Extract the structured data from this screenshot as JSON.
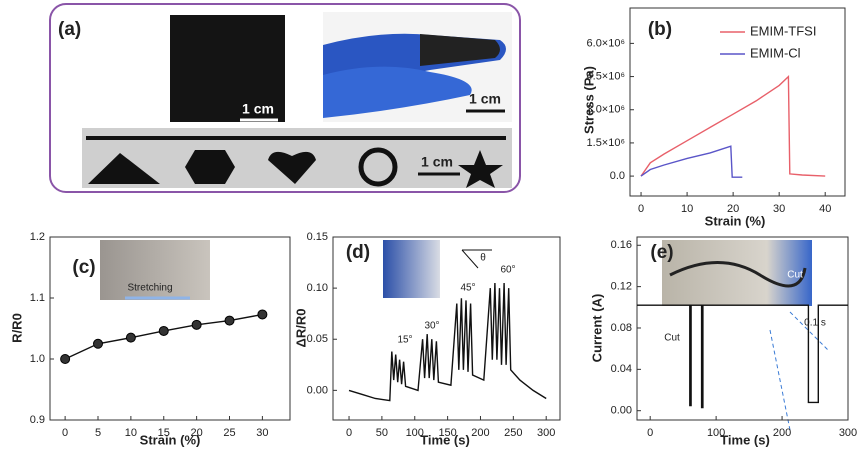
{
  "photo_panel": {
    "panel_label": "(a)",
    "scale_bars": [
      "1 cm",
      "1 cm",
      "1 cm"
    ]
  },
  "chart_data": [
    {
      "type": "line",
      "panel_label": "(b)",
      "xlabel": "Strain (%)",
      "ylabel": "Stress (Pa)",
      "legend": "upper right",
      "xlim": [
        -2.4,
        44.3
      ],
      "xticks": [
        0,
        10,
        20,
        30,
        40
      ],
      "ylim": [
        -900000,
        7600000
      ],
      "yticks": [
        {
          "value": 0,
          "label": "0.0"
        },
        {
          "value": 1500000,
          "label": "1.5×10⁶"
        },
        {
          "value": 3000000,
          "label": "3.0×10⁶"
        },
        {
          "value": 4500000,
          "label": "4.5×10⁶"
        },
        {
          "value": 6000000,
          "label": "6.0×10⁶"
        }
      ],
      "series": [
        {
          "name": "EMIM-TFSI",
          "color": "#e8606a",
          "x": [
            0,
            2,
            5,
            10,
            15,
            20,
            25,
            30,
            32,
            32.3,
            35,
            40
          ],
          "values": [
            0,
            600000,
            1000000,
            1600000,
            2200000,
            2800000,
            3400000,
            4100000,
            4500000,
            100000,
            50000,
            0
          ]
        },
        {
          "name": "EMIM-Cl",
          "color": "#5a55c8",
          "x": [
            0,
            2,
            5,
            10,
            15,
            19.5,
            19.8,
            22
          ],
          "values": [
            0,
            300000,
            500000,
            800000,
            1050000,
            1350000,
            -50000,
            -50000
          ]
        }
      ]
    },
    {
      "type": "line",
      "panel_label": "(c)",
      "xlabel": "Strain (%)",
      "ylabel": "R/R0",
      "markers": true,
      "annotations": [
        "Stretching"
      ],
      "xlim": [
        -2.3,
        34.2
      ],
      "xticks": [
        0,
        5,
        10,
        15,
        20,
        25,
        30
      ],
      "ylim": [
        0.9,
        1.2
      ],
      "yticks": [
        0.9,
        {
          "value": 1,
          "label": "1.0"
        },
        1.1,
        1.2
      ],
      "series": [
        {
          "color": "#111111",
          "x": [
            0,
            5,
            10,
            15,
            20,
            25,
            30
          ],
          "values": [
            1.0,
            1.025,
            1.035,
            1.046,
            1.056,
            1.063,
            1.073
          ]
        }
      ]
    },
    {
      "type": "line",
      "panel_label": "(d)",
      "xlabel": "Time (s)",
      "ylabel": "ΔR/R0",
      "annotations": [
        "15°",
        "30°",
        "45°",
        "60°",
        "θ"
      ],
      "xlim": [
        -24.4,
        321
      ],
      "xticks": [
        0,
        50,
        100,
        150,
        200,
        250,
        300
      ],
      "ylim": [
        -0.029,
        0.15
      ],
      "yticks": [
        {
          "value": 0,
          "label": "0.00"
        },
        0.05,
        {
          "value": 0.1,
          "label": "0.10"
        },
        0.15
      ],
      "series": [
        {
          "color": "#111111",
          "x": [
            0,
            20,
            40,
            62,
            65,
            68,
            71,
            74,
            77,
            80,
            83,
            86,
            105,
            112,
            115,
            119,
            122,
            126,
            129,
            133,
            136,
            155,
            164,
            167,
            171,
            174,
            178,
            181,
            185,
            188,
            205,
            215,
            218,
            222,
            225,
            229,
            232,
            236,
            239,
            243,
            246,
            260,
            280,
            300
          ],
          "values": [
            0.0,
            -0.004,
            -0.008,
            -0.01,
            0.038,
            0.01,
            0.035,
            0.008,
            0.03,
            0.006,
            0.028,
            0.004,
            0.0,
            0.05,
            0.012,
            0.055,
            0.012,
            0.05,
            0.01,
            0.048,
            0.008,
            0.005,
            0.085,
            0.02,
            0.09,
            0.02,
            0.088,
            0.018,
            0.085,
            0.015,
            0.01,
            0.1,
            0.03,
            0.105,
            0.03,
            0.1,
            0.025,
            0.105,
            0.025,
            0.1,
            0.02,
            0.01,
            0.0,
            -0.008
          ]
        }
      ]
    },
    {
      "type": "line",
      "panel_label": "(e)",
      "xlabel": "Time (s)",
      "ylabel": "Current (A)",
      "annotations": [
        "Cut",
        "0.1 s",
        "Cut"
      ],
      "xlim": [
        -20,
        300
      ],
      "xticks": [
        0,
        100,
        200,
        300
      ],
      "ylim": [
        -0.009,
        0.168
      ],
      "yticks": [
        {
          "value": 0,
          "label": "0.00"
        },
        0.04,
        0.08,
        0.12,
        0.16
      ],
      "series": [
        {
          "color": "#111111",
          "x": [
            -20,
            60,
            60,
            62,
            62,
            78,
            78,
            80,
            80,
            240,
            240,
            255,
            255,
            300
          ],
          "values": [
            0.102,
            0.102,
            0.005,
            0.005,
            0.102,
            0.102,
            0.003,
            0.003,
            0.102,
            0.102,
            0.008,
            0.008,
            0.102,
            0.102
          ]
        }
      ]
    }
  ]
}
